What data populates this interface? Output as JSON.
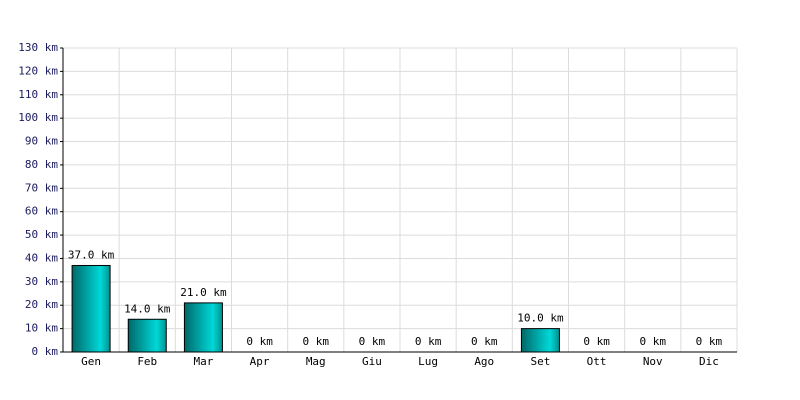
{
  "chart_data": {
    "type": "bar",
    "categories": [
      "Gen",
      "Feb",
      "Mar",
      "Apr",
      "Mag",
      "Giu",
      "Lug",
      "Ago",
      "Set",
      "Ott",
      "Nov",
      "Dic"
    ],
    "values": [
      37,
      14,
      21,
      0,
      0,
      0,
      0,
      0,
      10,
      0,
      0,
      0
    ],
    "value_labels": [
      "37.0 km",
      "14.0 km",
      "21.0 km",
      "0 km",
      "0 km",
      "0 km",
      "0 km",
      "0 km",
      "10.0 km",
      "0 km",
      "0 km",
      "0 km"
    ],
    "color": "#00d8d8",
    "ylim": [
      0,
      130
    ],
    "yticks": [
      {
        "value": 0,
        "label": "0 km"
      },
      {
        "value": 10,
        "label": "10 km"
      },
      {
        "value": 20,
        "label": "20 km"
      },
      {
        "value": 30,
        "label": "30 km"
      },
      {
        "value": 40,
        "label": "40 km"
      },
      {
        "value": 50,
        "label": "50 km"
      },
      {
        "value": 60,
        "label": "60 km"
      },
      {
        "value": 70,
        "label": "70 km"
      },
      {
        "value": 80,
        "label": "80 km"
      },
      {
        "value": 90,
        "label": "90 km"
      },
      {
        "value": 100,
        "label": "100 km"
      },
      {
        "value": 110,
        "label": "110 km"
      },
      {
        "value": 120,
        "label": "120 km"
      },
      {
        "value": 130,
        "label": "130 km"
      }
    ],
    "grid": true
  }
}
